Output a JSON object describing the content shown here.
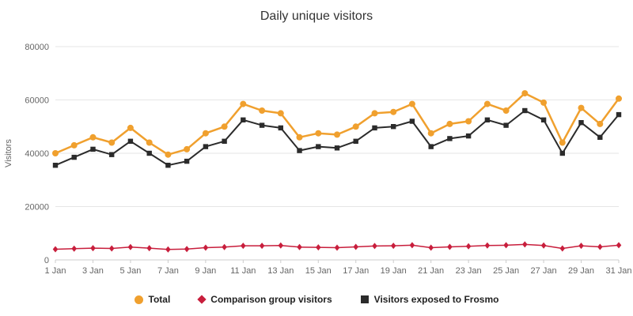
{
  "chart_data": {
    "type": "line",
    "title": "Daily unique visitors",
    "xlabel": "",
    "ylabel": "Visitors",
    "ylim": [
      0,
      80000
    ],
    "yticks": [
      0,
      20000,
      40000,
      60000,
      80000
    ],
    "grid": true,
    "legend_position": "bottom",
    "x_label_step": 2,
    "categories": [
      "1 Jan",
      "2 Jan",
      "3 Jan",
      "4 Jan",
      "5 Jan",
      "6 Jan",
      "7 Jan",
      "8 Jan",
      "9 Jan",
      "10 Jan",
      "11 Jan",
      "12 Jan",
      "13 Jan",
      "14 Jan",
      "15 Jan",
      "16 Jan",
      "17 Jan",
      "18 Jan",
      "19 Jan",
      "20 Jan",
      "21 Jan",
      "22 Jan",
      "23 Jan",
      "24 Jan",
      "25 Jan",
      "26 Jan",
      "27 Jan",
      "28 Jan",
      "29 Jan",
      "30 Jan",
      "31 Jan"
    ],
    "series": [
      {
        "name": "Total",
        "color": "#f0a02e",
        "marker": "circle",
        "line_width": 2.5,
        "values": [
          40000,
          43000,
          46000,
          44000,
          49500,
          44000,
          39500,
          41500,
          47500,
          50000,
          58500,
          56000,
          55000,
          46000,
          47500,
          47000,
          50000,
          55000,
          55500,
          58500,
          47500,
          51000,
          52000,
          58500,
          56000,
          62500,
          59000,
          44000,
          57000,
          51000,
          60500
        ]
      },
      {
        "name": "Comparison group visitors",
        "color": "#c81e3c",
        "marker": "diamond",
        "line_width": 1.5,
        "values": [
          4000,
          4200,
          4400,
          4300,
          4800,
          4400,
          3900,
          4100,
          4600,
          4800,
          5300,
          5300,
          5400,
          4800,
          4700,
          4600,
          4900,
          5200,
          5300,
          5500,
          4600,
          4900,
          5100,
          5400,
          5500,
          5800,
          5400,
          4300,
          5300,
          4900,
          5500
        ]
      },
      {
        "name": "Visitors exposed to Frosmo",
        "color": "#2b2b2b",
        "marker": "square",
        "line_width": 2,
        "values": [
          35500,
          38500,
          41500,
          39500,
          44500,
          40000,
          35500,
          37000,
          42500,
          44500,
          52500,
          50500,
          49500,
          41000,
          42500,
          42000,
          44500,
          49500,
          50000,
          52000,
          42500,
          45500,
          46500,
          52500,
          50500,
          56000,
          52500,
          40000,
          51500,
          46000,
          54500
        ]
      }
    ]
  }
}
